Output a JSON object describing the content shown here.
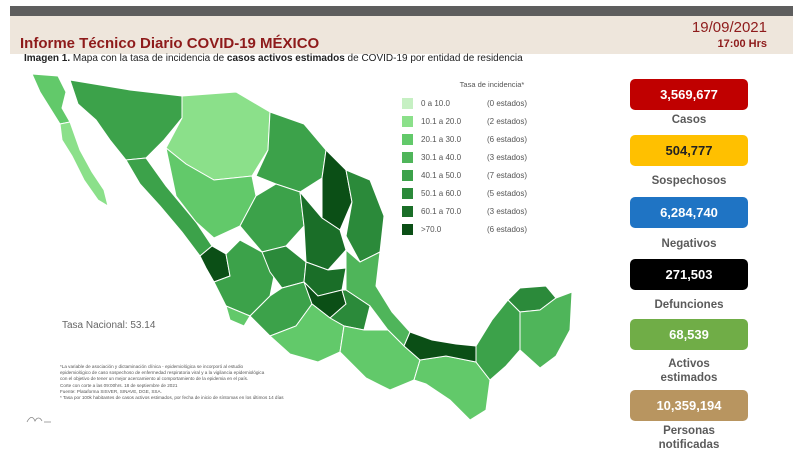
{
  "header": {
    "title": "Informe Técnico Diario COVID-19 MÉXICO",
    "date": "19/09/2021",
    "time": "17:00 Hrs"
  },
  "caption": {
    "prefix": "Imagen 1.",
    "text_before": " Mapa con la tasa de incidencia de ",
    "bold": "casos activos estimados",
    "text_after": " de COVID-19 por entidad de residencia"
  },
  "legend": {
    "title": "Tasa de incidencia*",
    "items": [
      {
        "range": "0  a  10.0",
        "count": "(0 estados)",
        "color": "#c6f0c3"
      },
      {
        "range": "10.1  a  20.0",
        "count": "(2 estados)",
        "color": "#8be08a"
      },
      {
        "range": "20.1  a  30.0",
        "count": "(6 estados)",
        "color": "#62c96a"
      },
      {
        "range": "30.1  a  40.0",
        "count": "(3 estados)",
        "color": "#4fb55a"
      },
      {
        "range": "40.1  a  50.0",
        "count": "(7 estados)",
        "color": "#3ca24a"
      },
      {
        "range": "50.1  a  60.0",
        "count": "(5 estados)",
        "color": "#2b8a3a"
      },
      {
        "range": "60.1  a  70.0",
        "count": "(3 estados)",
        "color": "#1a6e28"
      },
      {
        "range": ">70.0",
        "count": "(6 estados)",
        "color": "#0b4f16"
      }
    ]
  },
  "national_rate": "Tasa Nacional: 53.14",
  "notes": [
    "*La variable de asociación y dictaminación clínica - epidemiológica se incorporó al estudio",
    "epidemiológico de caso sospechoso de enfermedad respiratoria viral y a la vigilancia epidemiológica",
    "con el objetivo de tener un mejor acercamiento al comportamiento de la epidemia en el país.",
    "Corte con corte a las 09:00hrs. 18 de septiembre de 2021",
    "Fuente: Plataforma SISVER, SINAVE, DGE, SSA.",
    "* Tasa por 100k habitantes de casos activos estimados, por fecha de inicio de síntomas en los últimos 14 días"
  ],
  "stats": [
    {
      "value": "3,569,677",
      "label": "Casos",
      "color": "#c00000"
    },
    {
      "value": "504,777",
      "label": "Sospechosos",
      "color": "#ffc000"
    },
    {
      "value": "6,284,740",
      "label": "Negativos",
      "color": "#1f74c4"
    },
    {
      "value": "271,503",
      "label": "Defunciones",
      "color": "#000000"
    },
    {
      "value": "68,539",
      "label": "Activos estimados",
      "color": "#70ad47"
    },
    {
      "value": "10,359,194",
      "label": "Personas notificadas",
      "color": "#b89560"
    }
  ]
}
